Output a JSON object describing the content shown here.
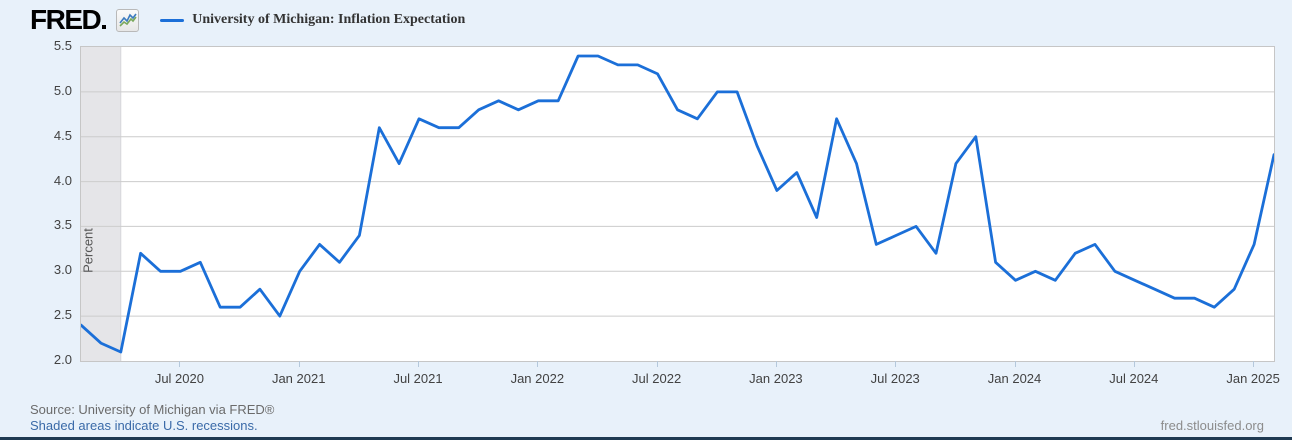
{
  "header": {
    "logo_text": "FRED",
    "legend": {
      "series_label": "University of Michigan: Inflation Expectation",
      "series_color": "#1b6fd8"
    }
  },
  "chart_data": {
    "type": "line",
    "title": "University of Michigan: Inflation Expectation",
    "ylabel": "Percent",
    "ylim": [
      2.0,
      5.5
    ],
    "yticks": [
      2.0,
      2.5,
      3.0,
      3.5,
      4.0,
      4.5,
      5.0,
      5.5
    ],
    "grid": "horizontal",
    "legend_position": "top-left",
    "x": [
      "2020-02",
      "2020-03",
      "2020-04",
      "2020-05",
      "2020-06",
      "2020-07",
      "2020-08",
      "2020-09",
      "2020-10",
      "2020-11",
      "2020-12",
      "2021-01",
      "2021-02",
      "2021-03",
      "2021-04",
      "2021-05",
      "2021-06",
      "2021-07",
      "2021-08",
      "2021-09",
      "2021-10",
      "2021-11",
      "2021-12",
      "2022-01",
      "2022-02",
      "2022-03",
      "2022-04",
      "2022-05",
      "2022-06",
      "2022-07",
      "2022-08",
      "2022-09",
      "2022-10",
      "2022-11",
      "2022-12",
      "2023-01",
      "2023-02",
      "2023-03",
      "2023-04",
      "2023-05",
      "2023-06",
      "2023-07",
      "2023-08",
      "2023-09",
      "2023-10",
      "2023-11",
      "2023-12",
      "2024-01",
      "2024-02",
      "2024-03",
      "2024-04",
      "2024-05",
      "2024-06",
      "2024-07",
      "2024-08",
      "2024-09",
      "2024-10",
      "2024-11",
      "2024-12",
      "2025-01",
      "2025-02"
    ],
    "values": [
      2.4,
      2.2,
      2.1,
      3.2,
      3.0,
      3.0,
      3.1,
      2.6,
      2.6,
      2.8,
      2.5,
      3.0,
      3.3,
      3.1,
      3.4,
      4.6,
      4.2,
      4.7,
      4.6,
      4.6,
      4.8,
      4.9,
      4.8,
      4.9,
      4.9,
      5.4,
      5.4,
      5.3,
      5.3,
      5.2,
      4.8,
      4.7,
      5.0,
      5.0,
      4.4,
      3.9,
      4.1,
      3.6,
      4.7,
      4.2,
      3.3,
      3.4,
      3.5,
      3.2,
      4.2,
      4.5,
      3.1,
      2.9,
      3.0,
      2.9,
      3.2,
      3.3,
      3.0,
      2.9,
      2.8,
      2.7,
      2.7,
      2.6,
      2.8,
      3.3,
      4.3
    ],
    "xticks": [
      {
        "label": "Jul 2020",
        "month_index": 5
      },
      {
        "label": "Jan 2021",
        "month_index": 11
      },
      {
        "label": "Jul 2021",
        "month_index": 17
      },
      {
        "label": "Jan 2022",
        "month_index": 23
      },
      {
        "label": "Jul 2022",
        "month_index": 29
      },
      {
        "label": "Jan 2023",
        "month_index": 35
      },
      {
        "label": "Jul 2023",
        "month_index": 41
      },
      {
        "label": "Jan 2024",
        "month_index": 47
      },
      {
        "label": "Jul 2024",
        "month_index": 53
      },
      {
        "label": "Jan 2025",
        "month_index": 59
      }
    ],
    "recession_bands": [
      {
        "start_month_index": 0,
        "end_month_index": 2
      }
    ]
  },
  "footer": {
    "source_line": "Source: University of Michigan via FRED®",
    "recession_note": "Shaded areas indicate U.S. recessions.",
    "site_link": "fred.stlouisfed.org"
  },
  "colors": {
    "page_background": "#e8f1fa",
    "plot_background": "#ffffff",
    "gridline": "#cccccc",
    "series_line": "#1b6fd8",
    "recession_band": "#e5e5e8",
    "recession_band_edge": "#d6d6da",
    "tick_text": "#424242",
    "source_text": "#6b6b6b",
    "link_text": "#3a6aa8",
    "site_text": "#8c8c8c",
    "bottom_border": "#1f3a52"
  }
}
